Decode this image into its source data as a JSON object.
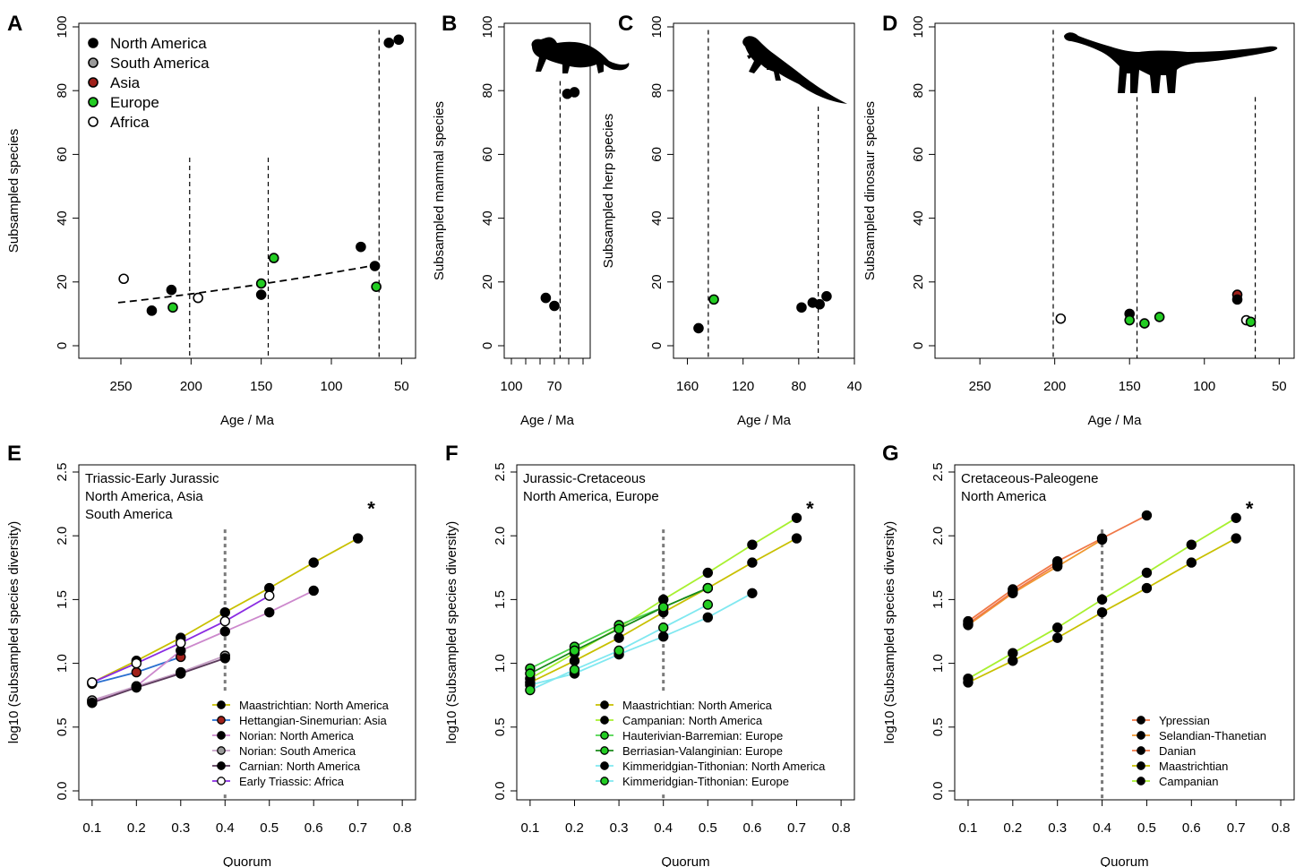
{
  "colors": {
    "black": "#000000",
    "dark_red": "#a0201a",
    "green": "#22cc22",
    "grey": "#9a9a9a",
    "white": "#ffffff",
    "olive": "#c8c000",
    "blue": "#2a6fd0",
    "pink": "#cc88cc",
    "lightpink": "#c6a0c6",
    "purple_dark": "#5a3a5a",
    "violet": "#8a2be2",
    "lime": "#a8f030",
    "light_green": "#4ed44e",
    "dark_green": "#1a8a1a",
    "cyan": "#80e8f0",
    "salmon": "#f07848",
    "orange": "#f09830"
  },
  "chart_data": [
    {
      "id": "A",
      "panel_label": "A",
      "type": "scatter",
      "xlabel": "Age / Ma",
      "ylabel": "Subsampled species",
      "xlim": [
        280,
        40
      ],
      "ylim": [
        0,
        100
      ],
      "reverse_x": true,
      "x_ticks": [
        250,
        200,
        150,
        100,
        50
      ],
      "y_ticks": [
        0,
        20,
        40,
        60,
        80,
        100
      ],
      "vlines": [
        {
          "x": 201
        },
        {
          "x": 145
        },
        {
          "x": 66
        }
      ],
      "trend": {
        "x": [
          252,
          66
        ],
        "y": [
          13.5,
          25.5
        ]
      },
      "legend": {
        "position": "top-left",
        "entries": [
          {
            "label": "North America",
            "fill": "#000000",
            "stroke": "#000000"
          },
          {
            "label": "South America",
            "fill": "#9a9a9a",
            "stroke": "#000000"
          },
          {
            "label": "Asia",
            "fill": "#a0201a",
            "stroke": "#000000"
          },
          {
            "label": "Europe",
            "fill": "#22cc22",
            "stroke": "#000000"
          },
          {
            "label": "Africa",
            "fill": "#ffffff",
            "stroke": "#000000"
          }
        ]
      },
      "points": [
        {
          "x": 248,
          "y": 21,
          "fill": "#ffffff"
        },
        {
          "x": 228,
          "y": 11,
          "fill": "#000000"
        },
        {
          "x": 214,
          "y": 17.5,
          "fill": "#000000"
        },
        {
          "x": 213,
          "y": 12,
          "fill": "#22cc22"
        },
        {
          "x": 195,
          "y": 15,
          "fill": "#ffffff"
        },
        {
          "x": 150,
          "y": 19.5,
          "fill": "#22cc22"
        },
        {
          "x": 150,
          "y": 16,
          "fill": "#000000"
        },
        {
          "x": 141,
          "y": 27.5,
          "fill": "#22cc22"
        },
        {
          "x": 79,
          "y": 31,
          "fill": "#000000"
        },
        {
          "x": 69,
          "y": 25,
          "fill": "#000000"
        },
        {
          "x": 68,
          "y": 18.5,
          "fill": "#22cc22"
        },
        {
          "x": 59,
          "y": 95,
          "fill": "#000000"
        },
        {
          "x": 52,
          "y": 96,
          "fill": "#000000"
        }
      ]
    },
    {
      "id": "B",
      "panel_label": "B",
      "type": "scatter",
      "xlabel": "Age / Ma",
      "ylabel": "Subsampled mammal species",
      "xlim": [
        105,
        45
      ],
      "ylim": [
        0,
        100
      ],
      "reverse_x": true,
      "x_ticks": [
        100,
        70
      ],
      "x_minor_ticks": [
        90,
        80,
        60,
        50
      ],
      "y_ticks": [
        0,
        20,
        40,
        60,
        80,
        100
      ],
      "vlines": [
        {
          "x": 66
        }
      ],
      "points": [
        {
          "x": 76,
          "y": 15,
          "fill": "#000000"
        },
        {
          "x": 70,
          "y": 12.5,
          "fill": "#000000"
        },
        {
          "x": 61,
          "y": 79,
          "fill": "#000000"
        },
        {
          "x": 56,
          "y": 79.5,
          "fill": "#000000"
        }
      ]
    },
    {
      "id": "C",
      "panel_label": "C",
      "type": "scatter",
      "xlabel": "Age / Ma",
      "ylabel": "Subsampled herp species",
      "xlim": [
        170,
        40
      ],
      "ylim": [
        0,
        100
      ],
      "reverse_x": true,
      "x_ticks": [
        160,
        120,
        80,
        40
      ],
      "y_ticks": [
        0,
        20,
        40,
        60,
        80,
        100
      ],
      "vlines": [
        {
          "x": 145
        },
        {
          "x": 66
        }
      ],
      "points": [
        {
          "x": 152,
          "y": 5.5,
          "fill": "#000000"
        },
        {
          "x": 141,
          "y": 14.5,
          "fill": "#22cc22"
        },
        {
          "x": 78,
          "y": 12,
          "fill": "#000000"
        },
        {
          "x": 70,
          "y": 13.5,
          "fill": "#000000"
        },
        {
          "x": 65,
          "y": 13,
          "fill": "#000000"
        },
        {
          "x": 60,
          "y": 15.5,
          "fill": "#000000"
        }
      ]
    },
    {
      "id": "D",
      "panel_label": "D",
      "type": "scatter",
      "xlabel": "Age / Ma",
      "ylabel": "Subsampled dinosaur species",
      "xlim": [
        280,
        40
      ],
      "ylim": [
        0,
        100
      ],
      "reverse_x": true,
      "x_ticks": [
        250,
        200,
        150,
        100,
        50
      ],
      "y_ticks": [
        0,
        20,
        40,
        60,
        80,
        100
      ],
      "vlines": [
        {
          "x": 201
        },
        {
          "x": 145
        },
        {
          "x": 66
        }
      ],
      "points": [
        {
          "x": 196,
          "y": 8.5,
          "fill": "#ffffff"
        },
        {
          "x": 150,
          "y": 10,
          "fill": "#000000"
        },
        {
          "x": 150,
          "y": 8,
          "fill": "#22cc22"
        },
        {
          "x": 140,
          "y": 7,
          "fill": "#22cc22"
        },
        {
          "x": 130,
          "y": 9,
          "fill": "#22cc22"
        },
        {
          "x": 78,
          "y": 16,
          "fill": "#a0201a"
        },
        {
          "x": 78,
          "y": 14.5,
          "fill": "#000000"
        },
        {
          "x": 72,
          "y": 8,
          "fill": "#ffffff"
        },
        {
          "x": 69,
          "y": 7.5,
          "fill": "#22cc22"
        }
      ]
    },
    {
      "id": "E",
      "panel_label": "E",
      "type": "line",
      "xlabel": "Quorum",
      "ylabel": "log10 (Subsampled species diversity)",
      "xlim": [
        0.07,
        0.83
      ],
      "ylim": [
        -0.08,
        2.5
      ],
      "x_ticks": [
        0.1,
        0.2,
        0.3,
        0.4,
        0.5,
        0.6,
        0.7,
        0.8
      ],
      "y_ticks": [
        0.0,
        0.5,
        1.0,
        1.5,
        2.0,
        2.5
      ],
      "y_tick_labels": [
        "0.0",
        "0.5",
        "1.0",
        "1.5",
        "2.0",
        "2.5"
      ],
      "vline": 0.4,
      "title_lines": [
        "Triassic-Early Jurassic",
        "North America, Asia",
        "South America"
      ],
      "asterisk": {
        "text": "*",
        "x": 0.73,
        "y": 2.23
      },
      "legend": {
        "position": "bottom-right"
      },
      "series": [
        {
          "name": "Maastrichtian: North America",
          "color": "#c8c000",
          "point_fill": "#000000",
          "x": [
            0.1,
            0.2,
            0.3,
            0.4,
            0.5,
            0.6,
            0.7
          ],
          "y": [
            0.85,
            1.02,
            1.2,
            1.4,
            1.59,
            1.79,
            1.98
          ]
        },
        {
          "name": "Hettangian-Sinemurian: Asia",
          "color": "#2a6fd0",
          "point_fill": "#a0201a",
          "x": [
            0.1,
            0.2,
            0.3
          ],
          "y": [
            0.84,
            0.93,
            1.05
          ]
        },
        {
          "name": "Norian: North America",
          "color": "#cc88cc",
          "point_fill": "#000000",
          "x": [
            0.1,
            0.2,
            0.3,
            0.4,
            0.5,
            0.6
          ],
          "y": [
            0.7,
            0.82,
            1.1,
            1.25,
            1.4,
            1.57
          ]
        },
        {
          "name": "Norian: South America",
          "color": "#c6a0c6",
          "point_fill": "#9a9a9a",
          "x": [
            0.1,
            0.2,
            0.3,
            0.4
          ],
          "y": [
            0.71,
            0.82,
            0.93,
            1.06
          ]
        },
        {
          "name": "Carnian: North America",
          "color": "#5a3a5a",
          "point_fill": "#000000",
          "x": [
            0.1,
            0.2,
            0.3,
            0.4
          ],
          "y": [
            0.69,
            0.81,
            0.92,
            1.04
          ]
        },
        {
          "name": "Early Triassic:  Africa",
          "color": "#8a2be2",
          "point_fill": "#ffffff",
          "x": [
            0.1,
            0.2,
            0.3,
            0.4,
            0.5
          ],
          "y": [
            0.85,
            1.0,
            1.16,
            1.33,
            1.53
          ]
        }
      ]
    },
    {
      "id": "F",
      "panel_label": "F",
      "type": "line",
      "xlabel": "Quorum",
      "ylabel": "log10 (Subsampled species diversity)",
      "xlim": [
        0.07,
        0.83
      ],
      "ylim": [
        -0.08,
        2.5
      ],
      "x_ticks": [
        0.1,
        0.2,
        0.3,
        0.4,
        0.5,
        0.6,
        0.7,
        0.8
      ],
      "y_ticks": [
        0.0,
        0.5,
        1.0,
        1.5,
        2.0,
        2.5
      ],
      "y_tick_labels": [
        "0.0",
        "0.5",
        "1.0",
        "1.5",
        "2.0",
        "2.5"
      ],
      "vline": 0.4,
      "title_lines": [
        "Jurassic-Cretaceous",
        "North America, Europe"
      ],
      "asterisk": {
        "text": "*",
        "x": 0.73,
        "y": 2.23
      },
      "legend": {
        "position": "bottom-right"
      },
      "series": [
        {
          "name": "Maastrichtian: North America",
          "color": "#c8c000",
          "point_fill": "#000000",
          "x": [
            0.1,
            0.2,
            0.3,
            0.4,
            0.5,
            0.6,
            0.7
          ],
          "y": [
            0.85,
            1.02,
            1.2,
            1.4,
            1.59,
            1.79,
            1.98
          ]
        },
        {
          "name": "Campanian: North America",
          "color": "#a8f030",
          "point_fill": "#000000",
          "x": [
            0.1,
            0.2,
            0.3,
            0.4,
            0.5,
            0.6,
            0.7
          ],
          "y": [
            0.88,
            1.08,
            1.28,
            1.5,
            1.71,
            1.93,
            2.14
          ]
        },
        {
          "name": "Hauterivian-Barremian: Europe",
          "color": "#4ed44e",
          "point_fill": "#22cc22",
          "x": [
            0.1,
            0.2,
            0.3,
            0.4,
            0.5
          ],
          "y": [
            0.96,
            1.13,
            1.3,
            1.44,
            1.59
          ]
        },
        {
          "name": "Berriasian-Valanginian: Europe",
          "color": "#1a8a1a",
          "point_fill": "#22cc22",
          "x": [
            0.1,
            0.2,
            0.3,
            0.4,
            0.5
          ],
          "y": [
            0.92,
            1.1,
            1.27,
            1.44,
            1.59
          ]
        },
        {
          "name": "Kimmeridgian-Tithonian: North America",
          "color": "#80e8f0",
          "point_fill": "#000000",
          "x": [
            0.1,
            0.2,
            0.3,
            0.4,
            0.5,
            0.6
          ],
          "y": [
            0.83,
            0.92,
            1.07,
            1.21,
            1.36,
            1.55
          ]
        },
        {
          "name": "Kimmeridgian-Tithonian: Europe",
          "color": "#80e8f0",
          "point_fill": "#22cc22",
          "x": [
            0.1,
            0.2,
            0.3,
            0.4,
            0.5
          ],
          "y": [
            0.79,
            0.95,
            1.1,
            1.28,
            1.46
          ]
        }
      ]
    },
    {
      "id": "G",
      "panel_label": "G",
      "type": "line",
      "xlabel": "Quorum",
      "ylabel": "log10 (Subsampled species diversity)",
      "xlim": [
        0.07,
        0.83
      ],
      "ylim": [
        -0.08,
        2.5
      ],
      "x_ticks": [
        0.1,
        0.2,
        0.3,
        0.4,
        0.5,
        0.6,
        0.7,
        0.8
      ],
      "y_ticks": [
        0.0,
        0.5,
        1.0,
        1.5,
        2.0,
        2.5
      ],
      "y_tick_labels": [
        "0.0",
        "0.5",
        "1.0",
        "1.5",
        "2.0",
        "2.5"
      ],
      "vline": 0.4,
      "title_lines": [
        "Cretaceous-Paleogene",
        "North America"
      ],
      "asterisk": {
        "text": "*",
        "x": 0.73,
        "y": 2.23
      },
      "legend": {
        "position": "bottom-right"
      },
      "series": [
        {
          "name": "Ypressian",
          "color": "#f07848",
          "point_fill": "#000000",
          "x": [
            0.1,
            0.2,
            0.3,
            0.4,
            0.5
          ],
          "y": [
            1.33,
            1.58,
            1.8,
            1.98,
            2.16
          ]
        },
        {
          "name": "Selandian-Thanetian",
          "color": "#f09830",
          "point_fill": "#000000",
          "x": [
            0.1,
            0.2,
            0.3,
            0.4
          ],
          "y": [
            1.3,
            1.55,
            1.76,
            1.97
          ]
        },
        {
          "name": "Danian",
          "color": "#f07848",
          "point_fill": "#000000",
          "x": [
            0.1,
            0.2,
            0.3
          ],
          "y": [
            1.31,
            1.56,
            1.78
          ]
        },
        {
          "name": "Maastrichtian",
          "color": "#c8c000",
          "point_fill": "#000000",
          "x": [
            0.1,
            0.2,
            0.3,
            0.4,
            0.5,
            0.6,
            0.7
          ],
          "y": [
            0.85,
            1.02,
            1.2,
            1.4,
            1.59,
            1.79,
            1.98
          ]
        },
        {
          "name": "Campanian",
          "color": "#a8f030",
          "point_fill": "#000000",
          "x": [
            0.1,
            0.2,
            0.3,
            0.4,
            0.5,
            0.6,
            0.7
          ],
          "y": [
            0.88,
            1.08,
            1.28,
            1.5,
            1.71,
            1.93,
            2.14
          ]
        }
      ]
    }
  ],
  "silhouettes": {
    "B": "mammal-silhouette-icon",
    "C": "lizard-silhouette-icon",
    "D": "sauropod-silhouette-icon"
  }
}
